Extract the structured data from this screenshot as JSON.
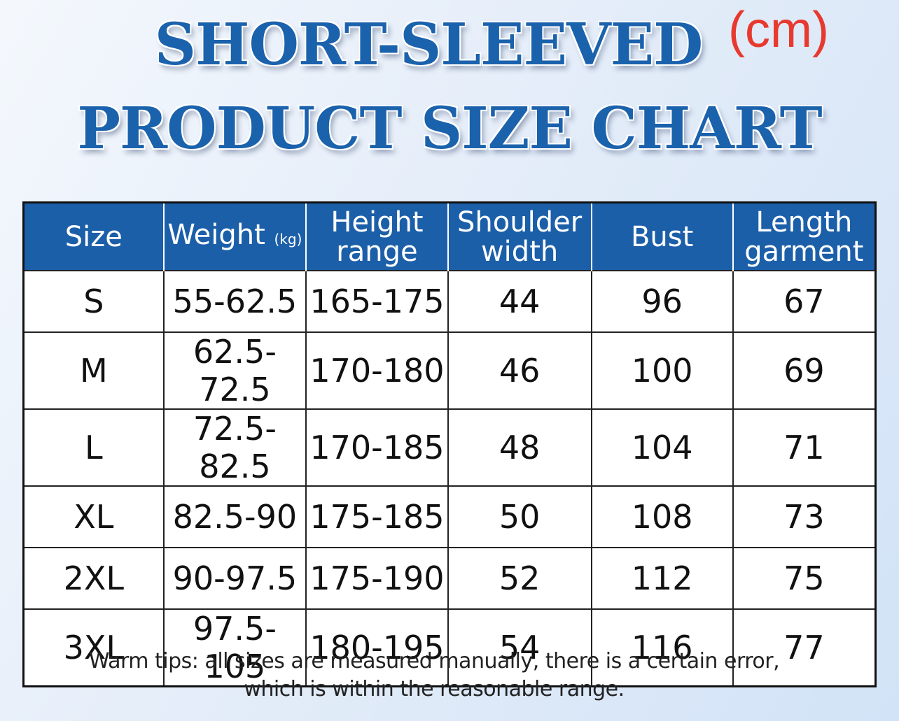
{
  "header": {
    "title_lines": [
      "SHORT-SLEEVED",
      "PRODUCT SIZE CHART"
    ],
    "unit": "(cm)"
  },
  "table": {
    "headers": [
      "Size",
      "Weight",
      "Height range",
      "Shoulder width",
      "Bust",
      "Length garment"
    ],
    "weight_unit": "(kg)",
    "rows": [
      [
        "S",
        "55-62.5",
        "165-175",
        "44",
        "96",
        "67"
      ],
      [
        "M",
        "62.5-72.5",
        "170-180",
        "46",
        "100",
        "69"
      ],
      [
        "L",
        "72.5-82.5",
        "170-185",
        "48",
        "104",
        "71"
      ],
      [
        "XL",
        "82.5-90",
        "175-185",
        "50",
        "108",
        "73"
      ],
      [
        "2XL",
        "90-97.5",
        "175-190",
        "52",
        "112",
        "75"
      ],
      [
        "3XL",
        "97.5-105",
        "180-195",
        "54",
        "116",
        "77"
      ]
    ]
  },
  "tips": [
    "Warm tips: all sizes are measured manually, there is a certain error,",
    "which is within the reasonable range."
  ]
}
